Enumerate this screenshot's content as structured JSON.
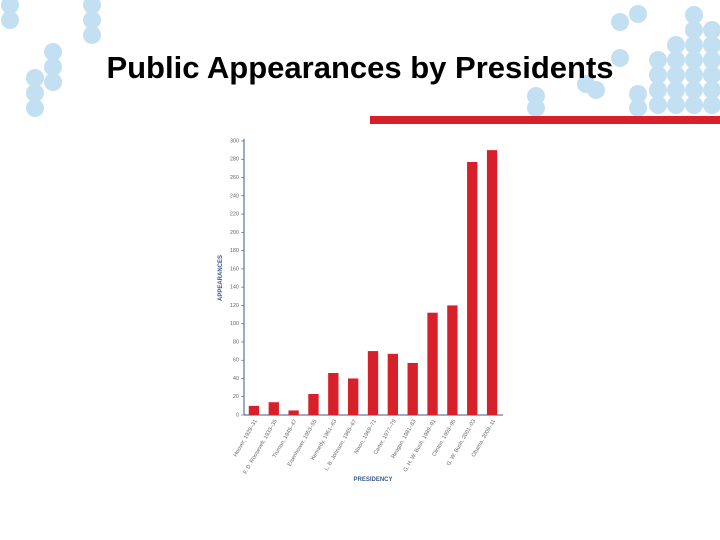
{
  "chart_data": {
    "type": "bar",
    "title": "Public Appearances by Presidents",
    "categories": [
      "Hoover, 1929–31",
      "F. D. Roosevelt, 1933–35",
      "Truman, 1945–47",
      "Eisenhower, 1953–55",
      "Kennedy, 1961–63",
      "L. B. Johnson, 1965–67",
      "Nixon, 1969–71",
      "Carter, 1977–79",
      "Reagan, 1981–83",
      "G. H. W. Bush, 1989–91",
      "Clinton, 1993–95",
      "G. W. Bush, 2001–03",
      "Obama, 2009–11"
    ],
    "values": [
      10,
      14,
      5,
      23,
      46,
      40,
      70,
      67,
      57,
      112,
      120,
      277,
      290
    ],
    "color": "#d7202a",
    "y_label": "APPEARANCES",
    "x_label": "PRESIDENCY",
    "ylim": [
      0,
      300
    ],
    "yticks": [
      0,
      20,
      40,
      60,
      80,
      100,
      120,
      140,
      160,
      180,
      200,
      220,
      240,
      260,
      280,
      300
    ]
  }
}
